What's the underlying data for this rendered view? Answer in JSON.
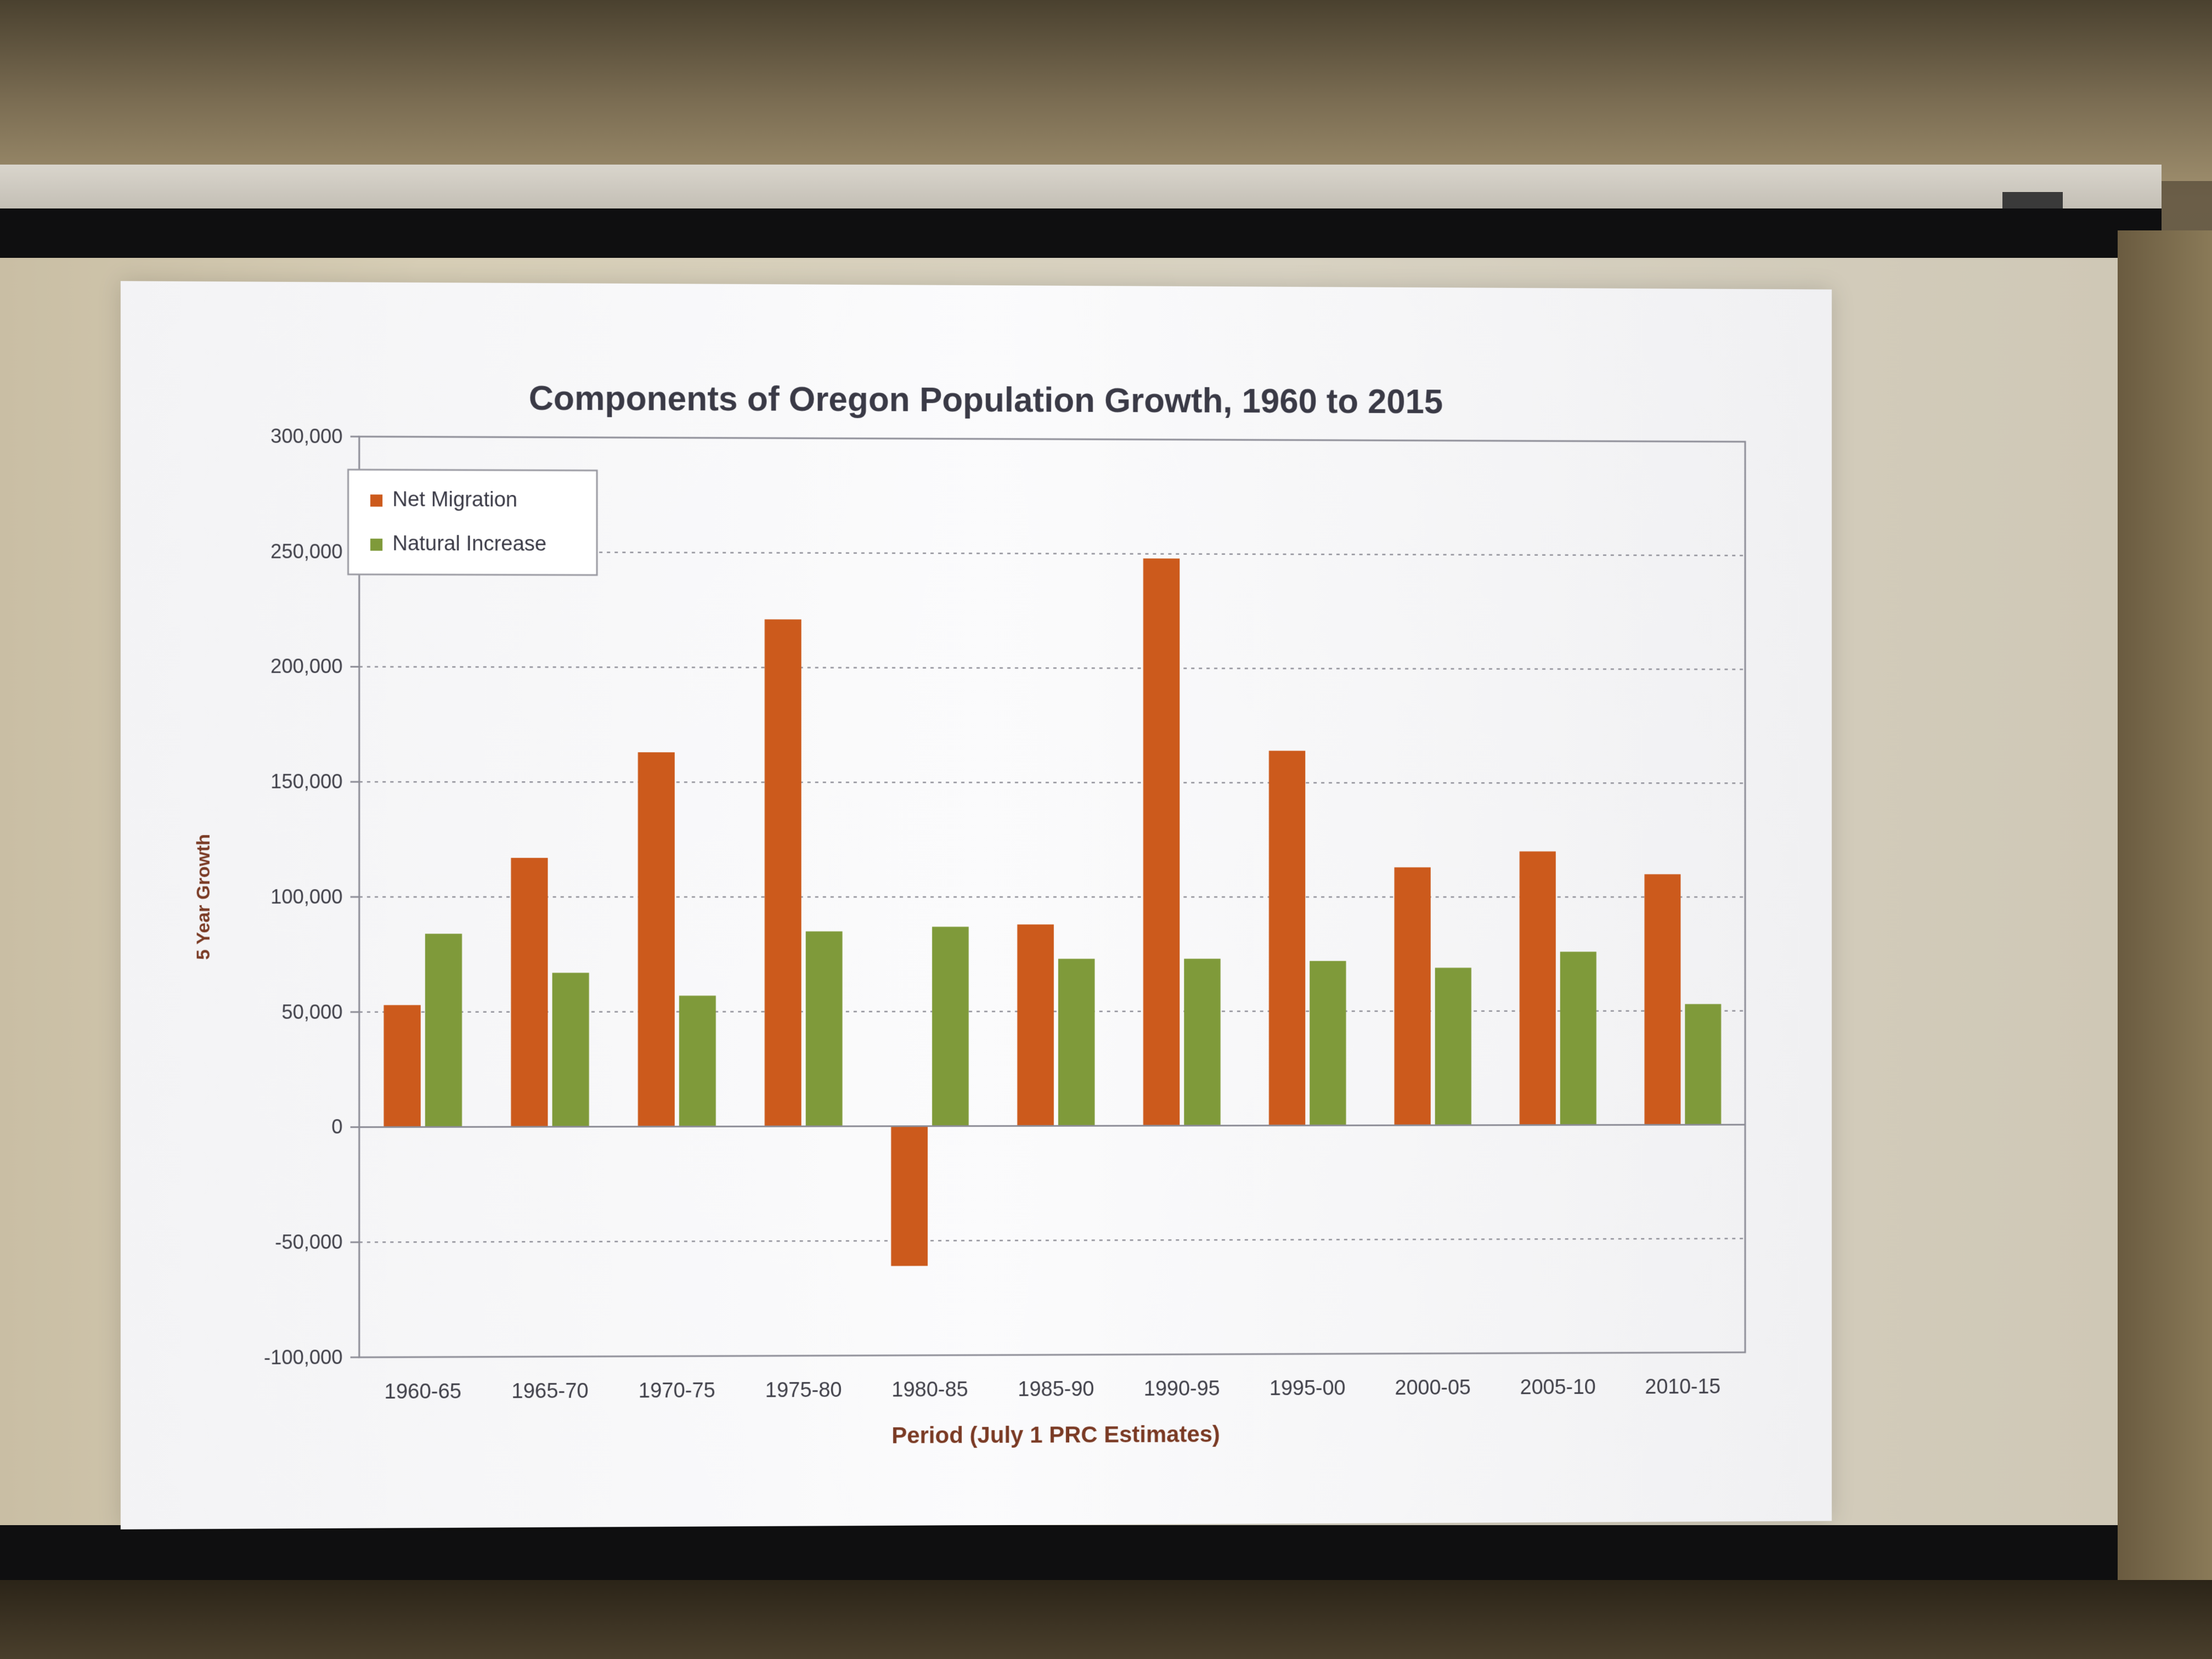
{
  "chart_data": {
    "type": "bar",
    "title": "Components of Oregon Population Growth, 1960 to 2015",
    "xlabel": "Period (July 1 PRC Estimates)",
    "ylabel": "5 Year Growth",
    "ylim": [
      -100000,
      300000
    ],
    "yticks": [
      {
        "value": 300000,
        "label": "300,000"
      },
      {
        "value": 250000,
        "label": "250,000"
      },
      {
        "value": 200000,
        "label": "200,000"
      },
      {
        "value": 150000,
        "label": "150,000"
      },
      {
        "value": 100000,
        "label": "100,000"
      },
      {
        "value": 50000,
        "label": "50,000"
      },
      {
        "value": 0,
        "label": "0"
      },
      {
        "value": -50000,
        "label": "-50,000"
      },
      {
        "value": -100000,
        "label": "-100,000"
      }
    ],
    "categories": [
      "1960-65",
      "1965-70",
      "1970-75",
      "1975-80",
      "1980-85",
      "1985-90",
      "1990-95",
      "1995-00",
      "2000-05",
      "2005-10",
      "2010-15"
    ],
    "series": [
      {
        "name": "Net Migration",
        "color": "#cc5a1c",
        "values": [
          53000,
          117000,
          163000,
          221000,
          -61000,
          88000,
          248000,
          164000,
          113000,
          120000,
          110000
        ]
      },
      {
        "name": "Natural Increase",
        "color": "#7f9a3a",
        "values": [
          84000,
          67000,
          57000,
          85000,
          87000,
          73000,
          73000,
          72000,
          69000,
          76000,
          53000
        ]
      }
    ],
    "grid": true,
    "legend_position": "top-left"
  }
}
